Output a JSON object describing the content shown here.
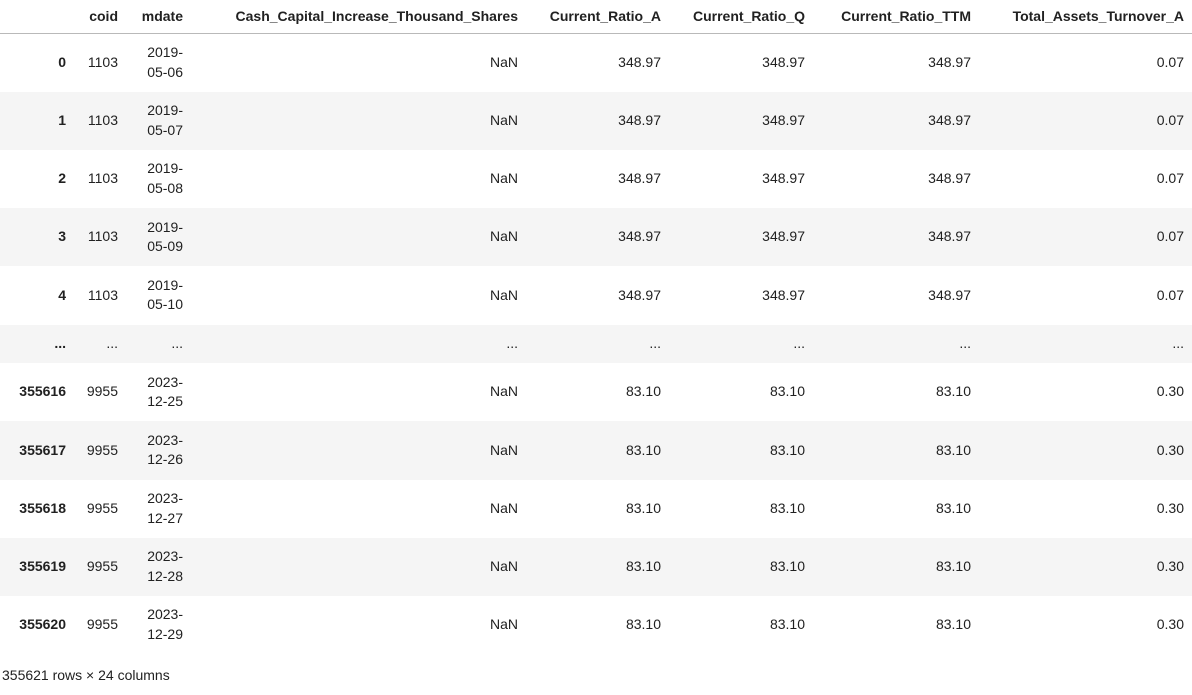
{
  "table": {
    "columns": [
      "",
      "coid",
      "mdate",
      "Cash_Capital_Increase_Thousand_Shares",
      "Current_Ratio_A",
      "Current_Ratio_Q",
      "Current_Ratio_TTM",
      "Total_Assets_Turnover_A"
    ],
    "rows": [
      {
        "index": "0",
        "cells": [
          "1103",
          "2019-05-06",
          "NaN",
          "348.97",
          "348.97",
          "348.97",
          "0.07"
        ]
      },
      {
        "index": "1",
        "cells": [
          "1103",
          "2019-05-07",
          "NaN",
          "348.97",
          "348.97",
          "348.97",
          "0.07"
        ]
      },
      {
        "index": "2",
        "cells": [
          "1103",
          "2019-05-08",
          "NaN",
          "348.97",
          "348.97",
          "348.97",
          "0.07"
        ]
      },
      {
        "index": "3",
        "cells": [
          "1103",
          "2019-05-09",
          "NaN",
          "348.97",
          "348.97",
          "348.97",
          "0.07"
        ]
      },
      {
        "index": "4",
        "cells": [
          "1103",
          "2019-05-10",
          "NaN",
          "348.97",
          "348.97",
          "348.97",
          "0.07"
        ]
      },
      {
        "index": "...",
        "cells": [
          "...",
          "...",
          "...",
          "...",
          "...",
          "...",
          "..."
        ],
        "truncation": true
      },
      {
        "index": "355616",
        "cells": [
          "9955",
          "2023-12-25",
          "NaN",
          "83.10",
          "83.10",
          "83.10",
          "0.30"
        ]
      },
      {
        "index": "355617",
        "cells": [
          "9955",
          "2023-12-26",
          "NaN",
          "83.10",
          "83.10",
          "83.10",
          "0.30"
        ]
      },
      {
        "index": "355618",
        "cells": [
          "9955",
          "2023-12-27",
          "NaN",
          "83.10",
          "83.10",
          "83.10",
          "0.30"
        ]
      },
      {
        "index": "355619",
        "cells": [
          "9955",
          "2023-12-28",
          "NaN",
          "83.10",
          "83.10",
          "83.10",
          "0.30"
        ]
      },
      {
        "index": "355620",
        "cells": [
          "9955",
          "2023-12-29",
          "NaN",
          "83.10",
          "83.10",
          "83.10",
          "0.30"
        ]
      }
    ],
    "dimensions_note": "355621 rows × 24 columns"
  },
  "colors": {
    "background": "#ffffff",
    "text": "#212121",
    "stripe": "#f5f5f5",
    "header_border": "#b9b9b9"
  }
}
